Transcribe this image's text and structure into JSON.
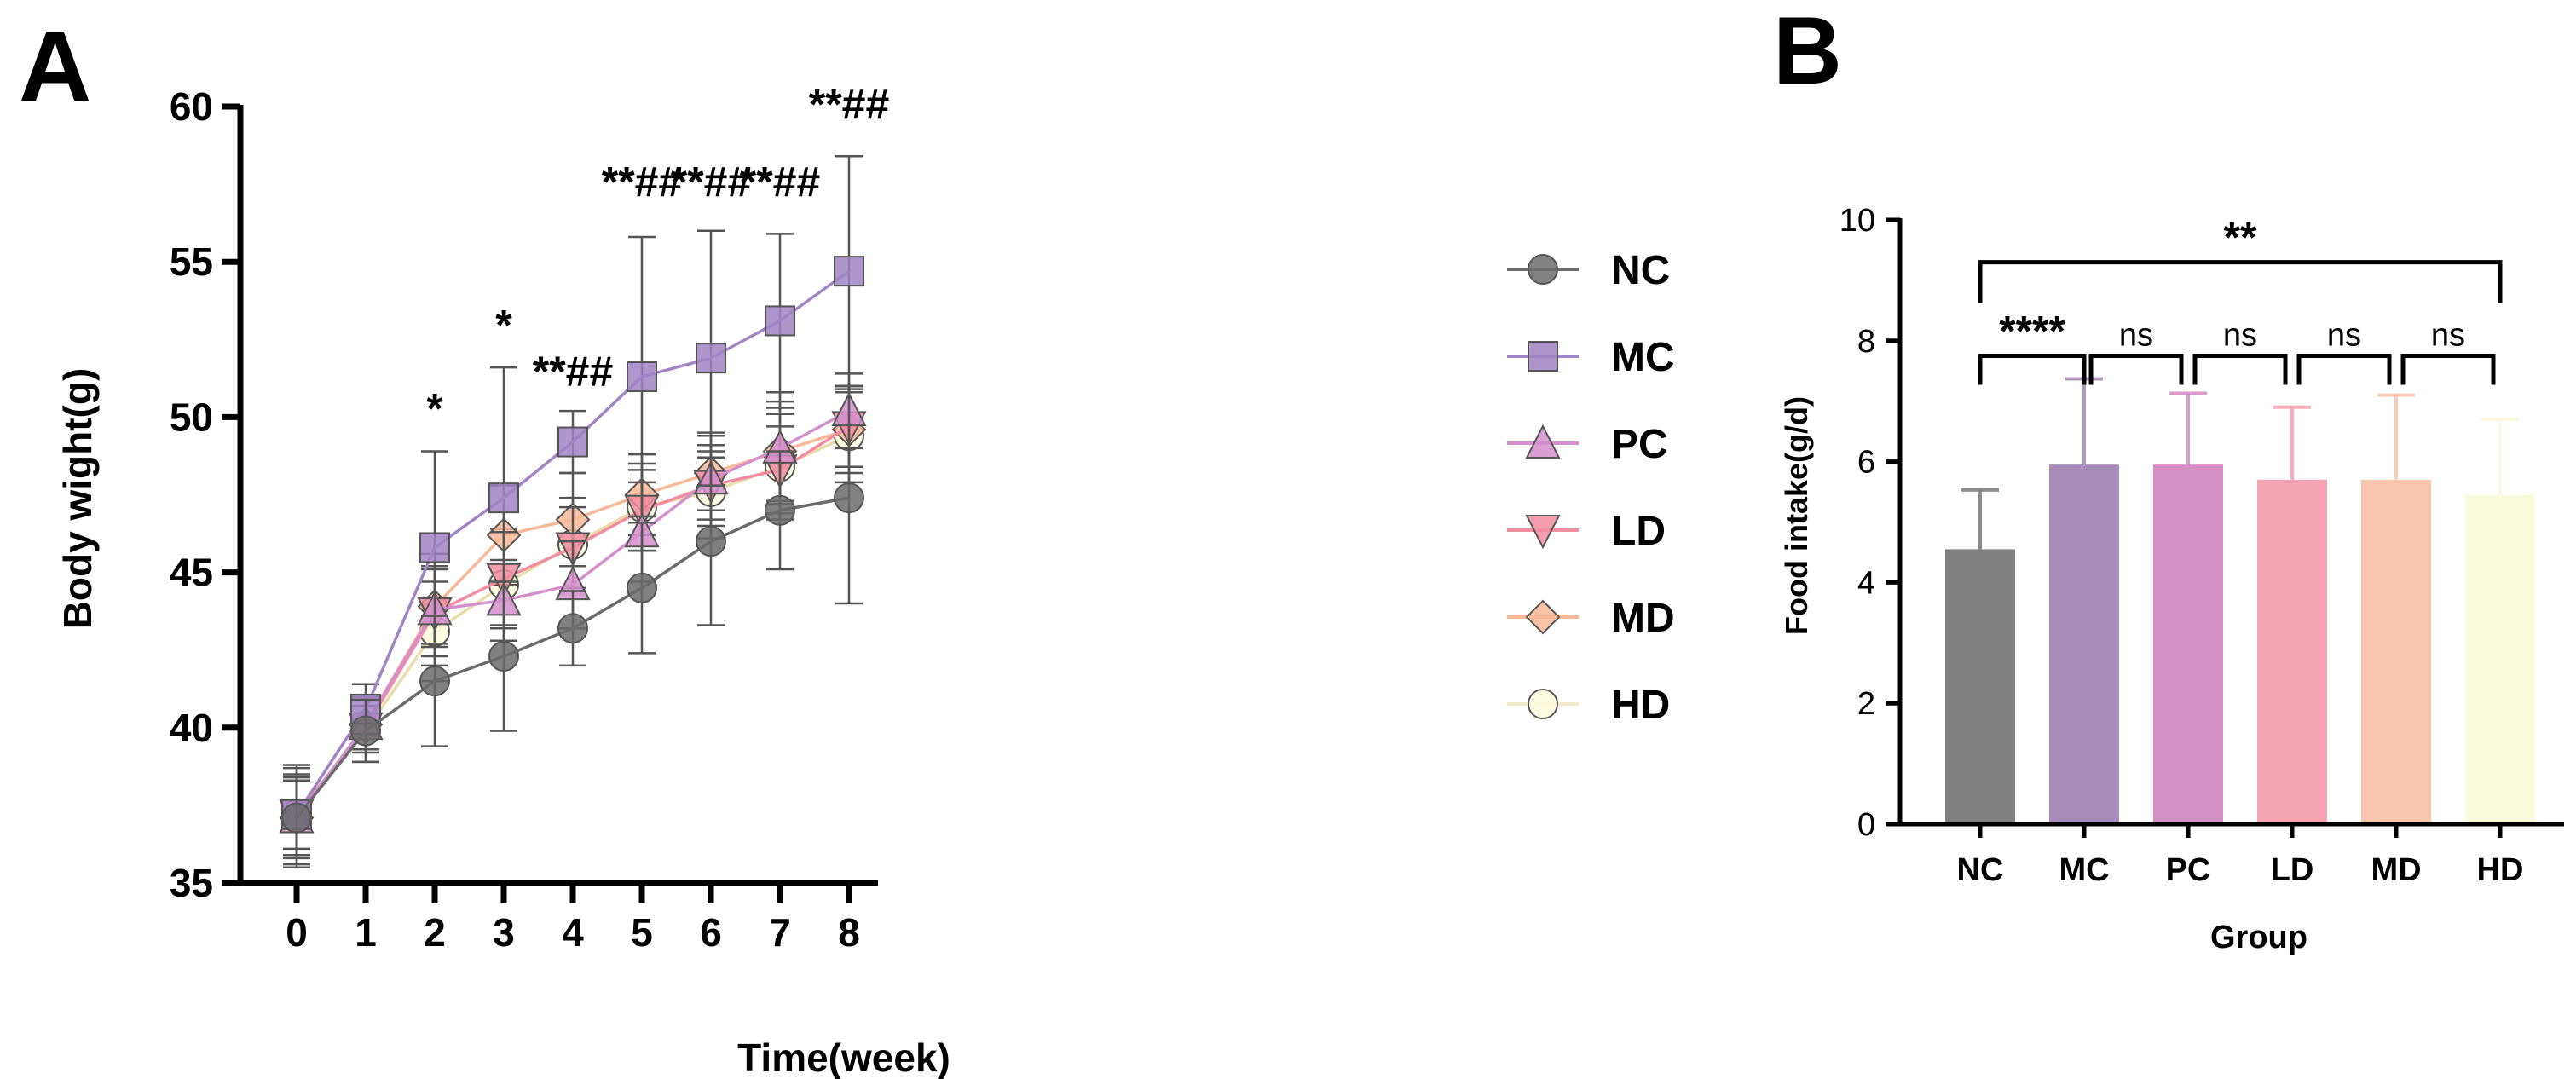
{
  "panel_a": {
    "label": "A",
    "chart_data": {
      "type": "line",
      "xlabel": "Time(week)",
      "ylabel": "Body wight(g)",
      "x": [
        0,
        1,
        2,
        3,
        4,
        5,
        6,
        7,
        8
      ],
      "xticks": [
        "0",
        "1",
        "2",
        "3",
        "4",
        "5",
        "6",
        "7",
        "8"
      ],
      "ylim": [
        35,
        60
      ],
      "yticks": [
        "35",
        "40",
        "45",
        "50",
        "55",
        "60"
      ],
      "series": [
        {
          "name": "NC",
          "color": "#6b6b6b",
          "marker": "circle",
          "values": [
            37.1,
            39.9,
            41.5,
            42.3,
            43.2,
            44.5,
            46.0,
            47.0,
            47.4
          ],
          "errors": [
            1.6,
            1.0,
            2.1,
            2.4,
            1.2,
            2.1,
            2.7,
            1.9,
            3.4
          ]
        },
        {
          "name": "MC",
          "color": "#a084c4",
          "marker": "square",
          "values": [
            37.2,
            40.6,
            45.8,
            47.4,
            49.2,
            51.3,
            51.9,
            53.1,
            54.7
          ],
          "errors": [
            1.6,
            0.8,
            3.1,
            4.2,
            1.0,
            4.5,
            4.1,
            2.8,
            3.7
          ]
        },
        {
          "name": "PC",
          "color": "#d48fcd",
          "marker": "triangle-up",
          "values": [
            37.1,
            40.1,
            43.8,
            44.1,
            44.6,
            46.3,
            48.0,
            49.0,
            50.2
          ],
          "errors": [
            1.2,
            0.8,
            1.8,
            1.3,
            1.4,
            1.6,
            1.5,
            1.8,
            1.2
          ]
        },
        {
          "name": "LD",
          "color": "#f28ca0",
          "marker": "triangle-down",
          "values": [
            37.2,
            40.0,
            43.7,
            44.8,
            45.8,
            47.0,
            47.8,
            48.3,
            49.7
          ],
          "errors": [
            1.1,
            0.7,
            1.4,
            1.5,
            1.3,
            1.3,
            1.1,
            1.4,
            1.3
          ]
        },
        {
          "name": "MD",
          "color": "#f8b999",
          "marker": "diamond",
          "values": [
            37.1,
            40.1,
            43.9,
            46.2,
            46.7,
            47.5,
            48.2,
            48.9,
            49.6
          ],
          "errors": [
            1.3,
            0.9,
            1.3,
            1.6,
            1.5,
            1.3,
            1.2,
            1.6,
            1.4
          ]
        },
        {
          "name": "HD",
          "color": "#fafadc",
          "marker": "circle",
          "values": [
            37.2,
            39.9,
            43.1,
            44.6,
            45.9,
            47.1,
            47.6,
            48.4,
            49.4
          ],
          "errors": [
            1.3,
            1.0,
            1.6,
            1.8,
            1.5,
            1.4,
            1.5,
            1.7,
            1.5
          ]
        }
      ],
      "annotations": [
        {
          "x": 2,
          "y": 49.8,
          "text": "*"
        },
        {
          "x": 3,
          "y": 52.5,
          "text": "*"
        },
        {
          "x": 4,
          "y": 51.0,
          "text": "**##"
        },
        {
          "x": 5,
          "y": 57.1,
          "text": "**##"
        },
        {
          "x": 6,
          "y": 57.1,
          "text": "**##"
        },
        {
          "x": 7,
          "y": 57.1,
          "text": "**##"
        },
        {
          "x": 8,
          "y": 59.6,
          "text": "**##"
        }
      ]
    }
  },
  "panel_b": {
    "label": "B",
    "chart_data": {
      "type": "bar",
      "xlabel": "Group",
      "ylabel": "Food intake(g/d)",
      "categories": [
        "NC",
        "MC",
        "PC",
        "LD",
        "MD",
        "HD"
      ],
      "values": [
        4.55,
        5.95,
        5.95,
        5.7,
        5.7,
        5.45
      ],
      "errors": [
        0.98,
        1.42,
        1.18,
        1.2,
        1.4,
        1.25
      ],
      "colors": [
        "#808080",
        "#a88bbb",
        "#d490c4",
        "#f5a3b3",
        "#f8c6ae",
        "#fafadc"
      ],
      "ylim": [
        0,
        10
      ],
      "yticks": [
        "0",
        "2",
        "4",
        "6",
        "8",
        "10"
      ],
      "comparisons": [
        {
          "from": 0,
          "to": 1,
          "text": "****",
          "y": 7.75
        },
        {
          "from": 1,
          "to": 2,
          "text": "ns",
          "y": 7.75
        },
        {
          "from": 2,
          "to": 3,
          "text": "ns",
          "y": 7.75
        },
        {
          "from": 3,
          "to": 4,
          "text": "ns",
          "y": 7.75
        },
        {
          "from": 4,
          "to": 5,
          "text": "ns",
          "y": 7.75
        },
        {
          "from": 0,
          "to": 5,
          "text": "**",
          "y": 9.3
        }
      ]
    }
  }
}
